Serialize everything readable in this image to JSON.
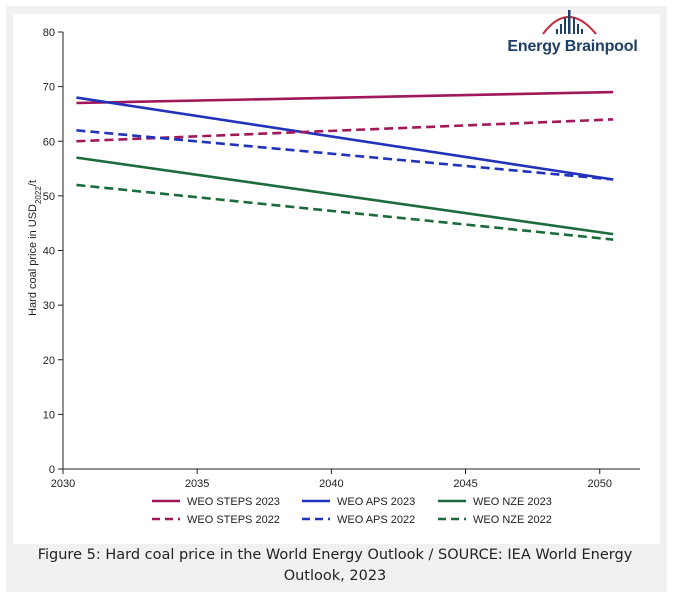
{
  "brand": {
    "name": "Energy Brainpool",
    "logo_colors": {
      "text": "#1e3f66",
      "bars": "#1e3f66",
      "arc": "#c0283c"
    }
  },
  "caption": "Figure 5: Hard coal price in the World Energy Outlook / SOURCE: IEA World Energy Outlook, 2023",
  "chart_data": {
    "type": "line",
    "title": "",
    "xlabel": "",
    "ylabel": "Hard coal price in USD2022/t",
    "ylabel_parts": {
      "main": "Hard coal price in USD",
      "sub": "2022",
      "tail": "/t"
    },
    "xlim": [
      2030,
      2051.5
    ],
    "ylim": [
      0,
      80
    ],
    "xticks": [
      2030,
      2035,
      2040,
      2045,
      2050
    ],
    "yticks": [
      0,
      10,
      20,
      30,
      40,
      50,
      60,
      70,
      80
    ],
    "grid": false,
    "legend_position": "bottom",
    "series": [
      {
        "name": "WEO STEPS 2023",
        "color": "#a0175a",
        "dash": "solid",
        "x": [
          2030.5,
          2050.5
        ],
        "y": [
          67,
          69
        ]
      },
      {
        "name": "WEO APS 2023",
        "color": "#2233bb",
        "dash": "solid",
        "x": [
          2030.5,
          2050.5
        ],
        "y": [
          68,
          53
        ]
      },
      {
        "name": "WEO NZE 2023",
        "color": "#1c6b3c",
        "dash": "solid",
        "x": [
          2030.5,
          2050.5
        ],
        "y": [
          57,
          43
        ]
      },
      {
        "name": "WEO STEPS 2022",
        "color": "#a0175a",
        "dash": "dashed",
        "x": [
          2030.5,
          2050.5
        ],
        "y": [
          60,
          64
        ]
      },
      {
        "name": "WEO APS 2022",
        "color": "#2233bb",
        "dash": "dashed",
        "x": [
          2030.5,
          2050.5
        ],
        "y": [
          62,
          53
        ]
      },
      {
        "name": "WEO NZE 2022",
        "color": "#1c6b3c",
        "dash": "dashed",
        "x": [
          2030.5,
          2050.5
        ],
        "y": [
          52,
          42
        ]
      }
    ]
  }
}
